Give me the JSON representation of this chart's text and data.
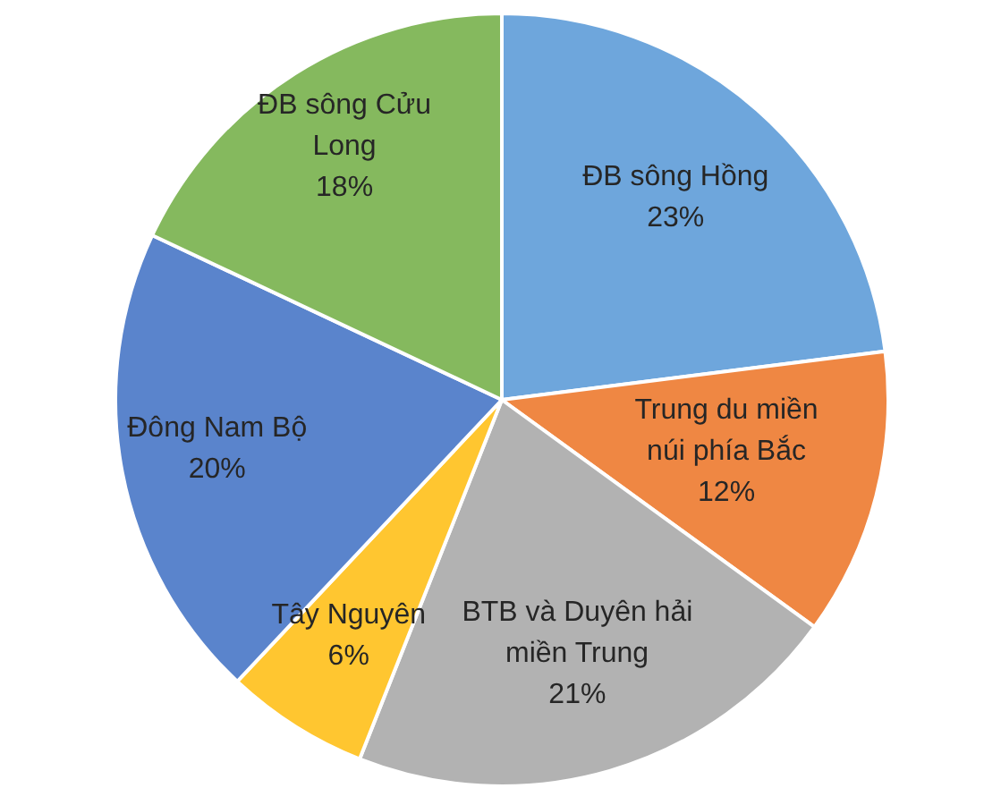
{
  "chart_data": {
    "type": "pie",
    "categories": [
      "ĐB sông Hồng",
      "Trung du miền núi phía Bắc",
      "BTB và Duyên hải miền Trung",
      "Tây Nguyên",
      "Đông Nam Bộ",
      "ĐB sông Cửu Long"
    ],
    "values": [
      23,
      12,
      21,
      6,
      20,
      18
    ],
    "value_labels": [
      "23%",
      "12%",
      "21%",
      "6%",
      "20%",
      "18%"
    ],
    "colors": [
      "#6ea6dc",
      "#ef8743",
      "#b2b2b2",
      "#ffc630",
      "#5a84cc",
      "#85b95e"
    ]
  }
}
